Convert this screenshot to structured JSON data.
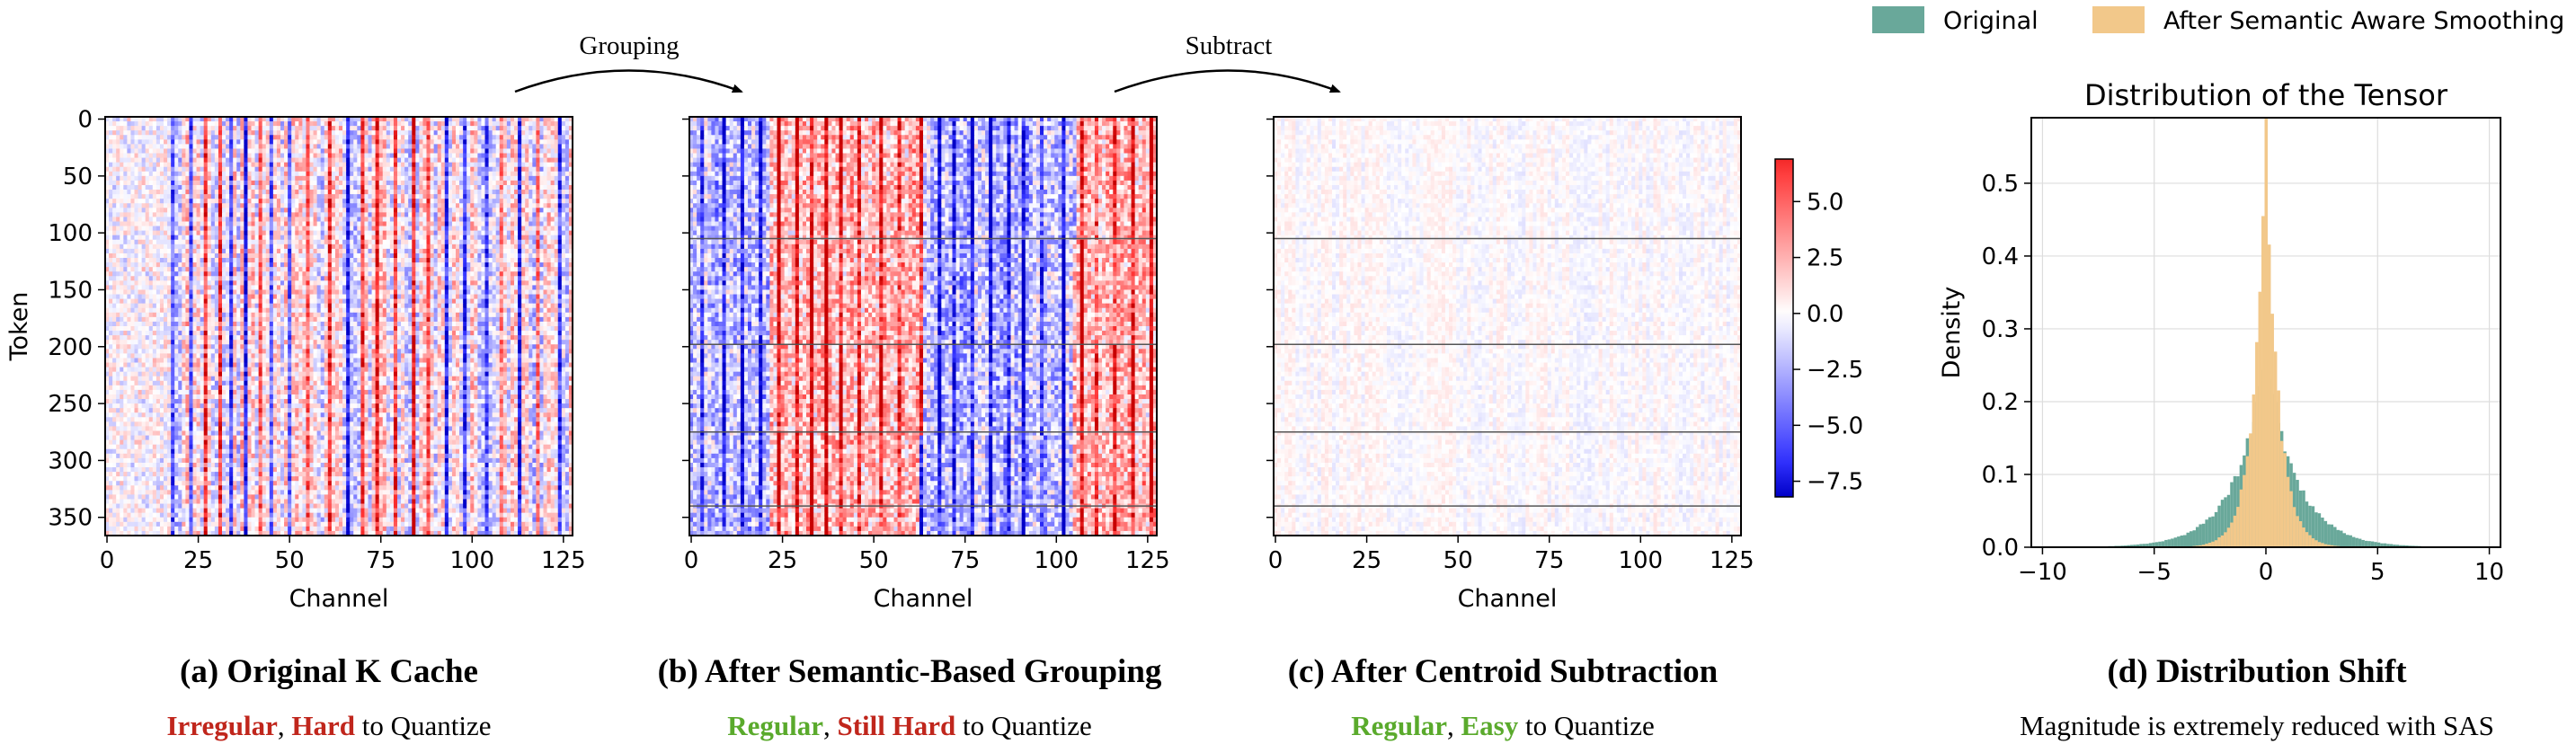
{
  "chart_data": [
    {
      "type": "heatmap",
      "id": "a",
      "xlabel": "Channel",
      "ylabel": "Token",
      "xlim": [
        0,
        128
      ],
      "ylim": [
        368,
        0
      ],
      "xticks": [
        0,
        25,
        50,
        75,
        100,
        125
      ],
      "yticks": [
        0,
        50,
        100,
        150,
        200,
        250,
        300,
        350
      ],
      "group_boundaries": [],
      "intensity": 1.0,
      "hot_columns": [
        4,
        11,
        18,
        23,
        27,
        31,
        34,
        38,
        42,
        45,
        50,
        55,
        61,
        66,
        70,
        74,
        79,
        84,
        88,
        93,
        98,
        104,
        108,
        113,
        118,
        124
      ],
      "caption": "(a) Original K Cache",
      "subcaption": [
        {
          "text": "Irregular",
          "color": "#c0261c",
          "bold": true
        },
        {
          "text": ", ",
          "color": "#000000",
          "bold": false
        },
        {
          "text": "Hard",
          "color": "#c0261c",
          "bold": true
        },
        {
          "text": " to Quantize",
          "color": "#000000",
          "bold": false
        }
      ]
    },
    {
      "type": "heatmap",
      "id": "b",
      "xlabel": "Channel",
      "ylabel": "",
      "xlim": [
        0,
        128
      ],
      "ylim": [
        368,
        0
      ],
      "xticks": [
        0,
        25,
        50,
        75,
        100,
        125
      ],
      "yticks": [
        0,
        50,
        100,
        150,
        200,
        250,
        300,
        350
      ],
      "group_boundaries": [
        107,
        200,
        277,
        342
      ],
      "intensity": 1.15,
      "hot_columns": [
        3,
        9,
        14,
        19,
        24,
        29,
        33,
        37,
        41,
        46,
        52,
        57,
        63,
        68,
        72,
        77,
        82,
        87,
        91,
        96,
        102,
        107,
        111,
        116,
        121,
        126
      ],
      "caption": "(b) After Semantic-Based Grouping",
      "subcaption": [
        {
          "text": "Regular",
          "color": "#5aaa2c",
          "bold": true
        },
        {
          "text": ", ",
          "color": "#000000",
          "bold": false
        },
        {
          "text": "Still Hard",
          "color": "#c0261c",
          "bold": true
        },
        {
          "text": " to Quantize",
          "color": "#000000",
          "bold": false
        }
      ]
    },
    {
      "type": "heatmap",
      "id": "c",
      "xlabel": "Channel",
      "ylabel": "",
      "xlim": [
        0,
        128
      ],
      "ylim": [
        368,
        0
      ],
      "xticks": [
        0,
        25,
        50,
        75,
        100,
        125
      ],
      "yticks": [
        0,
        50,
        100,
        150,
        200,
        250,
        300,
        350
      ],
      "group_boundaries": [
        107,
        200,
        277,
        342
      ],
      "intensity": 0.22,
      "hot_columns": [],
      "caption": "(c) After Centroid Subtraction",
      "subcaption": [
        {
          "text": "Regular",
          "color": "#5aaa2c",
          "bold": true
        },
        {
          "text": ", ",
          "color": "#000000",
          "bold": false
        },
        {
          "text": "Easy",
          "color": "#5aaa2c",
          "bold": true
        },
        {
          "text": " to Quantize",
          "color": "#000000",
          "bold": false
        }
      ]
    },
    {
      "type": "colorbar",
      "vmin": -8.2,
      "vmax": 6.9,
      "ticks": [
        5.0,
        2.5,
        0.0,
        -2.5,
        -5.0,
        -7.5
      ],
      "tick_labels": [
        "5.0",
        "2.5",
        "0.0",
        "−2.5",
        "−5.0",
        "−7.5"
      ],
      "colormap": "bwr"
    },
    {
      "type": "area",
      "id": "d",
      "title": "Distribution of the Tensor",
      "xlabel": "",
      "ylabel": "Density",
      "xlim": [
        -10.5,
        10.5
      ],
      "ylim": [
        0,
        0.59
      ],
      "xticks": [
        -10,
        -5,
        0,
        5,
        10
      ],
      "xtick_labels": [
        "−10",
        "−5",
        "0",
        "5",
        "10"
      ],
      "yticks": [
        0.0,
        0.1,
        0.2,
        0.3,
        0.4,
        0.5
      ],
      "ytick_labels": [
        "0.0",
        "0.1",
        "0.2",
        "0.3",
        "0.4",
        "0.5"
      ],
      "grid": true,
      "legend_position": "top-right",
      "series": [
        {
          "name": "Original",
          "color": "#69a89a",
          "peak": 0.26,
          "scale": 1.35
        },
        {
          "name": "After Semantic Aware Smoothing",
          "color": "#f2c88a",
          "peak": 0.57,
          "scale": 0.55
        }
      ],
      "caption": "(d) Distribution Shift",
      "subcaption": [
        {
          "text": "Magnitude is extremely reduced with SAS",
          "color": "#000000",
          "bold": false
        }
      ]
    }
  ],
  "arrows": [
    {
      "label": "Grouping"
    },
    {
      "label": "Subtract"
    }
  ]
}
